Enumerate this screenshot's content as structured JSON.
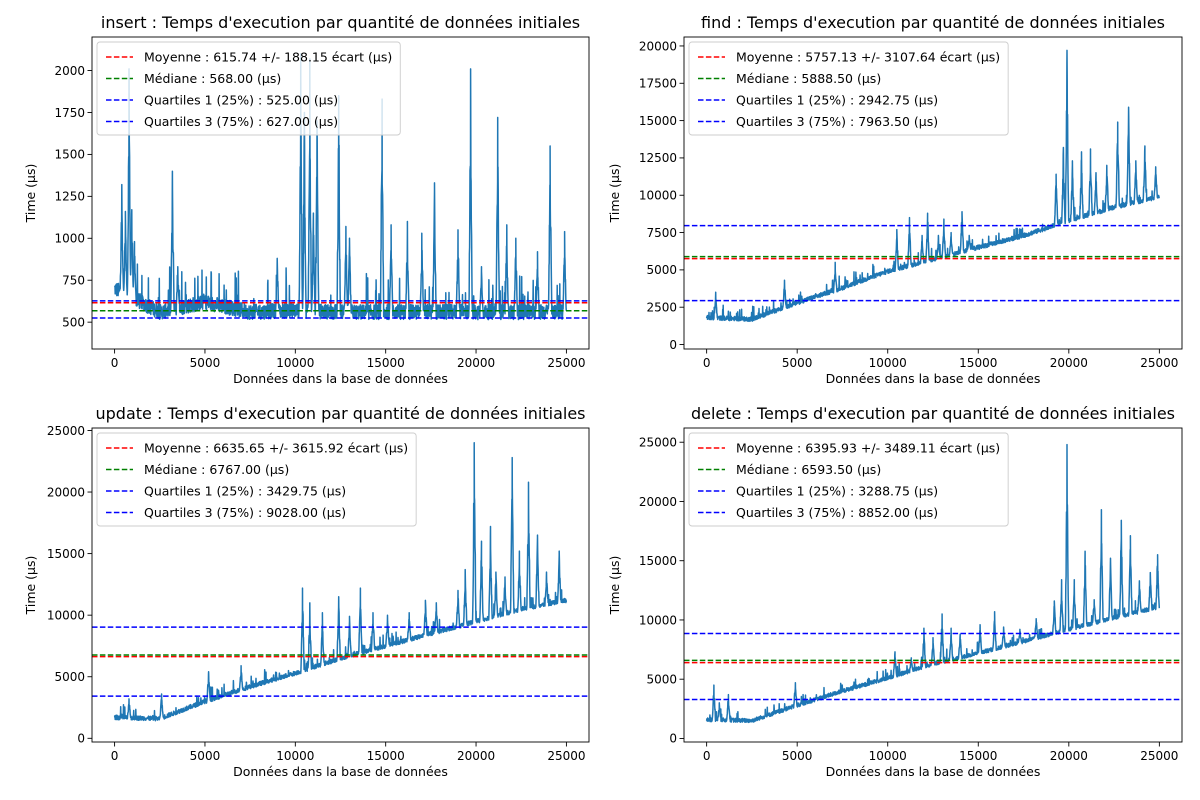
{
  "figure": {
    "background": "#ffffff",
    "data_line_color": "#1f77b4"
  },
  "chart_data": [
    {
      "type": "line",
      "title": "insert : Temps d'execution par quantité de données initiales",
      "xlabel": "Données dans la base de données",
      "ylabel": "Time (µs)",
      "xlim": [
        -1250,
        26250
      ],
      "ylim": [
        340,
        2200
      ],
      "xticks": [
        0,
        5000,
        10000,
        15000,
        20000,
        25000
      ],
      "yticks": [
        500,
        750,
        1000,
        1250,
        1500,
        1750,
        2000
      ],
      "legend_position": "top-left",
      "baseline": [
        700,
        560,
        620,
        560,
        570,
        560,
        560,
        560,
        560,
        560,
        560,
        560
      ],
      "noise": 45,
      "spikes": [
        [
          400,
          1320
        ],
        [
          600,
          1160
        ],
        [
          800,
          2010
        ],
        [
          950,
          1170
        ],
        [
          1100,
          980
        ],
        [
          3200,
          1400
        ],
        [
          3500,
          830
        ],
        [
          9000,
          880
        ],
        [
          10300,
          2100
        ],
        [
          10500,
          1750
        ],
        [
          10800,
          2070
        ],
        [
          11000,
          1150
        ],
        [
          11200,
          1700
        ],
        [
          12400,
          1850
        ],
        [
          12800,
          1070
        ],
        [
          13000,
          1000
        ],
        [
          14800,
          1830
        ],
        [
          15300,
          1080
        ],
        [
          16200,
          1100
        ],
        [
          17000,
          1030
        ],
        [
          17700,
          1330
        ],
        [
          19000,
          1050
        ],
        [
          19700,
          2010
        ],
        [
          20300,
          830
        ],
        [
          21200,
          1720
        ],
        [
          21700,
          1080
        ],
        [
          22200,
          1000
        ],
        [
          23400,
          920
        ],
        [
          24100,
          1550
        ],
        [
          24900,
          1040
        ]
      ],
      "spike_width": 90,
      "series": [
        {
          "role": "data",
          "name": ""
        },
        {
          "role": "hline",
          "name": "Moyenne : 615.74 +/- 188.15 écart (µs)",
          "y": 615.74,
          "color": "#ff0000"
        },
        {
          "role": "hline",
          "name": "Médiane : 568.00 (µs)",
          "y": 568.0,
          "color": "#008000"
        },
        {
          "role": "hline",
          "name": "Quartiles 1 (25%) : 525.00 (µs)",
          "y": 525.0,
          "color": "#0000ff"
        },
        {
          "role": "hline",
          "name": "Quartiles 3 (75%) : 627.00 (µs)",
          "y": 627.0,
          "color": "#0000ff"
        }
      ]
    },
    {
      "type": "line",
      "title": "find : Temps d'execution par quantité de données initiales",
      "xlabel": "Données dans la base de données",
      "ylabel": "Time (µs)",
      "xlim": [
        -1250,
        26250
      ],
      "ylim": [
        -300,
        20600
      ],
      "xticks": [
        0,
        5000,
        10000,
        15000,
        20000,
        25000
      ],
      "yticks": [
        0,
        2500,
        5000,
        7500,
        10000,
        12500,
        15000,
        17500,
        20000
      ],
      "legend_position": "top-left",
      "baseline": [
        1800,
        1700,
        2800,
        3800,
        4900,
        5700,
        6500,
        7300,
        8300,
        9200,
        9900,
        10600
      ],
      "noise": 150,
      "spikes": [
        [
          500,
          3500
        ],
        [
          4300,
          4300
        ],
        [
          7100,
          5500
        ],
        [
          10500,
          7700
        ],
        [
          11200,
          8500
        ],
        [
          11900,
          7300
        ],
        [
          12200,
          8800
        ],
        [
          12800,
          7300
        ],
        [
          13100,
          8400
        ],
        [
          13500,
          7500
        ],
        [
          14100,
          8900
        ],
        [
          14500,
          7300
        ],
        [
          19300,
          11400
        ],
        [
          19700,
          13200
        ],
        [
          19900,
          19700
        ],
        [
          20200,
          12300
        ],
        [
          20700,
          12900
        ],
        [
          21200,
          13100
        ],
        [
          21500,
          11500
        ],
        [
          22100,
          12000
        ],
        [
          22700,
          14900
        ],
        [
          23300,
          15900
        ],
        [
          23700,
          12300
        ],
        [
          24200,
          13300
        ],
        [
          24800,
          11900
        ]
      ],
      "spike_width": 90,
      "series": [
        {
          "role": "data",
          "name": ""
        },
        {
          "role": "hline",
          "name": "Moyenne : 5757.13 +/- 3107.64 écart (µs)",
          "y": 5757.13,
          "color": "#ff0000"
        },
        {
          "role": "hline",
          "name": "Médiane : 5888.50 (µs)",
          "y": 5888.5,
          "color": "#008000"
        },
        {
          "role": "hline",
          "name": "Quartiles 1 (25%) : 2942.75 (µs)",
          "y": 2942.75,
          "color": "#0000ff"
        },
        {
          "role": "hline",
          "name": "Quartiles 3 (75%) : 7963.50 (µs)",
          "y": 7963.5,
          "color": "#0000ff"
        }
      ]
    },
    {
      "type": "line",
      "title": "update : Temps d'execution par quantité de données initiales",
      "xlabel": "Données dans la base de données",
      "ylabel": "Time (µs)",
      "xlim": [
        -1250,
        26250
      ],
      "ylim": [
        -300,
        25200
      ],
      "xticks": [
        0,
        5000,
        10000,
        15000,
        20000,
        25000
      ],
      "yticks": [
        0,
        5000,
        10000,
        15000,
        20000,
        25000
      ],
      "legend_position": "top-left",
      "baseline": [
        1700,
        1600,
        3000,
        4200,
        5300,
        6500,
        7500,
        8500,
        9500,
        10500,
        11200,
        12000
      ],
      "noise": 180,
      "spikes": [
        [
          800,
          3200
        ],
        [
          2600,
          3600
        ],
        [
          5200,
          5400
        ],
        [
          7000,
          5900
        ],
        [
          10400,
          12200
        ],
        [
          10800,
          11000
        ],
        [
          11500,
          10200
        ],
        [
          12400,
          11500
        ],
        [
          13000,
          9900
        ],
        [
          13600,
          12200
        ],
        [
          14300,
          10200
        ],
        [
          15100,
          10000
        ],
        [
          16300,
          10200
        ],
        [
          17200,
          11200
        ],
        [
          17800,
          11000
        ],
        [
          19000,
          12000
        ],
        [
          19400,
          13700
        ],
        [
          19900,
          24000
        ],
        [
          20300,
          16000
        ],
        [
          20800,
          17200
        ],
        [
          21100,
          13500
        ],
        [
          21600,
          13100
        ],
        [
          22000,
          22800
        ],
        [
          22400,
          15200
        ],
        [
          22900,
          20800
        ],
        [
          23400,
          16500
        ],
        [
          23900,
          13500
        ],
        [
          24600,
          15200
        ]
      ],
      "spike_width": 90,
      "series": [
        {
          "role": "data",
          "name": ""
        },
        {
          "role": "hline",
          "name": "Moyenne : 6635.65 +/- 3615.92 écart (µs)",
          "y": 6635.65,
          "color": "#ff0000"
        },
        {
          "role": "hline",
          "name": "Médiane : 6767.00 (µs)",
          "y": 6767.0,
          "color": "#008000"
        },
        {
          "role": "hline",
          "name": "Quartiles 1 (25%) : 3429.75 (µs)",
          "y": 3429.75,
          "color": "#0000ff"
        },
        {
          "role": "hline",
          "name": "Quartiles 3 (75%) : 9028.00 (µs)",
          "y": 9028.0,
          "color": "#0000ff"
        }
      ]
    },
    {
      "type": "line",
      "title": "delete : Temps d'execution par quantité de données initiales",
      "xlabel": "Données dans la base de données",
      "ylabel": "Time (µs)",
      "xlim": [
        -1250,
        26250
      ],
      "ylim": [
        -300,
        26200
      ],
      "xticks": [
        0,
        5000,
        10000,
        15000,
        20000,
        25000
      ],
      "yticks": [
        0,
        5000,
        10000,
        15000,
        20000,
        25000
      ],
      "legend_position": "top-left",
      "baseline": [
        1600,
        1500,
        2800,
        4000,
        5100,
        6300,
        7200,
        8200,
        9200,
        10200,
        11100,
        11900
      ],
      "noise": 170,
      "spikes": [
        [
          400,
          4500
        ],
        [
          700,
          3000
        ],
        [
          1200,
          3700
        ],
        [
          4900,
          4700
        ],
        [
          10400,
          7300
        ],
        [
          11300,
          6800
        ],
        [
          12000,
          9300
        ],
        [
          12500,
          8500
        ],
        [
          13000,
          10500
        ],
        [
          13500,
          9300
        ],
        [
          14000,
          8800
        ],
        [
          15100,
          9600
        ],
        [
          15900,
          10700
        ],
        [
          16400,
          9400
        ],
        [
          17300,
          9200
        ],
        [
          18200,
          10100
        ],
        [
          19200,
          11600
        ],
        [
          19600,
          13400
        ],
        [
          19900,
          24800
        ],
        [
          20300,
          13400
        ],
        [
          20900,
          15800
        ],
        [
          21400,
          11700
        ],
        [
          21800,
          19300
        ],
        [
          22300,
          15200
        ],
        [
          22900,
          18400
        ],
        [
          23400,
          17100
        ],
        [
          23900,
          13300
        ],
        [
          24500,
          14000
        ],
        [
          24900,
          15500
        ]
      ],
      "spike_width": 90,
      "series": [
        {
          "role": "data",
          "name": ""
        },
        {
          "role": "hline",
          "name": "Moyenne : 6395.93 +/- 3489.11 écart (µs)",
          "y": 6395.93,
          "color": "#ff0000"
        },
        {
          "role": "hline",
          "name": "Médiane : 6593.50 (µs)",
          "y": 6593.5,
          "color": "#008000"
        },
        {
          "role": "hline",
          "name": "Quartiles 1 (25%) : 3288.75 (µs)",
          "y": 3288.75,
          "color": "#0000ff"
        },
        {
          "role": "hline",
          "name": "Quartiles 3 (75%) : 8852.00 (µs)",
          "y": 8852.0,
          "color": "#0000ff"
        }
      ]
    }
  ]
}
